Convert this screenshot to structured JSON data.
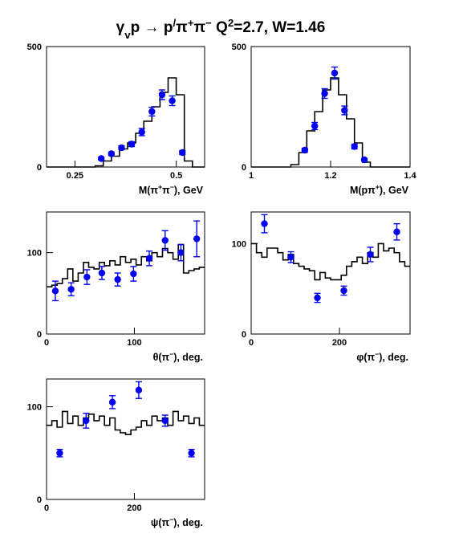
{
  "figure_title": {
    "main": "γvp → p/π+π−   Q2=2.7, W=1.46",
    "parts": [
      {
        "t": "γ",
        "s": "n"
      },
      {
        "t": "v",
        "s": "sub"
      },
      {
        "t": "p → p",
        "s": "n"
      },
      {
        "t": "/",
        "s": "sup"
      },
      {
        "t": "π",
        "s": "n"
      },
      {
        "t": "+",
        "s": "sup"
      },
      {
        "t": "π",
        "s": "n"
      },
      {
        "t": "−",
        "s": "sup"
      },
      {
        "t": "   Q",
        "s": "n"
      },
      {
        "t": "2",
        "s": "sup"
      },
      {
        "t": "=2.7, W=1.46",
        "s": "n"
      }
    ]
  },
  "colors": {
    "data_points": "#0000ee",
    "histogram": "#000000",
    "frame": "#000000"
  },
  "chart_data": [
    {
      "id": "m-pipi",
      "type": "scatter",
      "xlabel": "M(π+π−), GeV",
      "xlabel_parts": [
        {
          "t": "M(π",
          "s": "n"
        },
        {
          "t": "+",
          "s": "sup"
        },
        {
          "t": "π",
          "s": "n"
        },
        {
          "t": "−",
          "s": "sup"
        },
        {
          "t": "), GeV",
          "s": "n"
        }
      ],
      "xlim": [
        0.18,
        0.57
      ],
      "ylim": [
        0,
        500
      ],
      "xticks": [
        {
          "v": 0.25,
          "label": "0.25"
        },
        {
          "v": 0.5,
          "label": "0.5"
        }
      ],
      "yticks": [
        {
          "v": 0,
          "label": "0"
        },
        {
          "v": 500,
          "label": "500"
        }
      ],
      "series": [
        {
          "kind": "histogram",
          "edges": [
            0.18,
            0.3,
            0.32,
            0.34,
            0.36,
            0.38,
            0.4,
            0.42,
            0.44,
            0.46,
            0.48,
            0.5,
            0.52,
            0.54,
            0.57
          ],
          "values": [
            0,
            5,
            25,
            45,
            75,
            100,
            140,
            190,
            250,
            310,
            370,
            300,
            25,
            0
          ]
        },
        {
          "kind": "points",
          "x": [
            0.315,
            0.34,
            0.365,
            0.39,
            0.415,
            0.44,
            0.465,
            0.49,
            0.515
          ],
          "y": [
            35,
            55,
            80,
            95,
            145,
            230,
            300,
            275,
            60
          ],
          "err": [
            6,
            7,
            8,
            10,
            15,
            18,
            20,
            20,
            8
          ]
        }
      ]
    },
    {
      "id": "m-ppi",
      "type": "scatter",
      "xlabel": "M(pπ+), GeV",
      "xlabel_parts": [
        {
          "t": "M(pπ",
          "s": "n"
        },
        {
          "t": "+",
          "s": "sup"
        },
        {
          "t": "), GeV",
          "s": "n"
        }
      ],
      "xlim": [
        1.0,
        1.4
      ],
      "ylim": [
        0,
        500
      ],
      "xticks": [
        {
          "v": 1.0,
          "label": "1"
        },
        {
          "v": 1.2,
          "label": "1.2"
        },
        {
          "v": 1.4,
          "label": "1.4"
        }
      ],
      "yticks": [
        {
          "v": 0,
          "label": "0"
        },
        {
          "v": 500,
          "label": "500"
        }
      ],
      "series": [
        {
          "kind": "histogram",
          "edges": [
            1.0,
            1.1,
            1.12,
            1.14,
            1.16,
            1.18,
            1.2,
            1.22,
            1.24,
            1.26,
            1.28,
            1.3,
            1.4
          ],
          "values": [
            0,
            10,
            60,
            150,
            230,
            320,
            370,
            300,
            200,
            100,
            20,
            0
          ]
        },
        {
          "kind": "points",
          "x": [
            1.135,
            1.16,
            1.185,
            1.21,
            1.235,
            1.26,
            1.285
          ],
          "y": [
            70,
            170,
            305,
            390,
            235,
            85,
            30
          ],
          "err": [
            8,
            15,
            20,
            25,
            18,
            10,
            5
          ]
        }
      ]
    },
    {
      "id": "theta-pi",
      "type": "scatter",
      "xlabel": "θ(π−), deg.",
      "xlabel_parts": [
        {
          "t": "θ(π",
          "s": "n"
        },
        {
          "t": "−",
          "s": "sup"
        },
        {
          "t": "), deg.",
          "s": "n"
        }
      ],
      "xlim": [
        0,
        180
      ],
      "ylim": [
        0,
        150
      ],
      "xticks": [
        {
          "v": 0,
          "label": "0"
        },
        {
          "v": 100,
          "label": "100"
        }
      ],
      "yticks": [
        {
          "v": 0,
          "label": "0"
        },
        {
          "v": 100,
          "label": "100"
        }
      ],
      "series": [
        {
          "kind": "histogram",
          "edges": [
            0,
            6,
            12,
            18,
            24,
            30,
            36,
            42,
            48,
            54,
            60,
            66,
            72,
            78,
            84,
            90,
            96,
            102,
            108,
            114,
            120,
            126,
            132,
            138,
            144,
            150,
            156,
            162,
            168,
            174,
            180
          ],
          "values": [
            58,
            60,
            62,
            68,
            80,
            65,
            75,
            88,
            82,
            80,
            88,
            84,
            90,
            85,
            95,
            88,
            92,
            85,
            95,
            90,
            100,
            95,
            105,
            100,
            92,
            110,
            75,
            78,
            80,
            82
          ]
        },
        {
          "kind": "points",
          "x": [
            10,
            28,
            46,
            63,
            81,
            99,
            117,
            135,
            153,
            171
          ],
          "y": [
            53,
            55,
            70,
            75,
            67,
            74,
            93,
            115,
            100,
            117
          ],
          "err": [
            12,
            8,
            9,
            8,
            8,
            9,
            9,
            12,
            10,
            22
          ]
        }
      ]
    },
    {
      "id": "phi-pi",
      "type": "scatter",
      "xlabel": "φ(π−), deg.",
      "xlabel_parts": [
        {
          "t": "φ(π",
          "s": "n"
        },
        {
          "t": "−",
          "s": "sup"
        },
        {
          "t": "), deg.",
          "s": "n"
        }
      ],
      "xlim": [
        0,
        360
      ],
      "ylim": [
        0,
        135
      ],
      "xticks": [
        {
          "v": 0,
          "label": "0"
        },
        {
          "v": 200,
          "label": "200"
        }
      ],
      "yticks": [
        {
          "v": 0,
          "label": "0"
        },
        {
          "v": 100,
          "label": "100"
        }
      ],
      "series": [
        {
          "kind": "histogram",
          "edges": [
            0,
            12,
            24,
            36,
            48,
            60,
            72,
            84,
            96,
            108,
            120,
            132,
            144,
            156,
            168,
            180,
            192,
            204,
            216,
            228,
            240,
            252,
            264,
            276,
            288,
            300,
            312,
            324,
            336,
            348,
            360
          ],
          "values": [
            100,
            90,
            85,
            95,
            95,
            90,
            82,
            88,
            78,
            75,
            72,
            70,
            60,
            68,
            62,
            60,
            60,
            65,
            75,
            80,
            85,
            78,
            90,
            85,
            100,
            92,
            95,
            90,
            80,
            75
          ]
        },
        {
          "kind": "points",
          "x": [
            30,
            90,
            150,
            210,
            270,
            330
          ],
          "y": [
            122,
            85,
            40,
            48,
            88,
            113
          ],
          "err": [
            10,
            6,
            5,
            5,
            8,
            9
          ]
        }
      ]
    },
    {
      "id": "psi-pi",
      "type": "scatter",
      "xlabel": "ψ(π−), deg.",
      "xlabel_parts": [
        {
          "t": "ψ(π",
          "s": "n"
        },
        {
          "t": "−",
          "s": "sup"
        },
        {
          "t": "), deg.",
          "s": "n"
        }
      ],
      "xlim": [
        0,
        360
      ],
      "ylim": [
        0,
        130
      ],
      "xticks": [
        {
          "v": 0,
          "label": "0"
        },
        {
          "v": 200,
          "label": "200"
        }
      ],
      "yticks": [
        {
          "v": 0,
          "label": "0"
        },
        {
          "v": 100,
          "label": "100"
        }
      ],
      "series": [
        {
          "kind": "histogram",
          "edges": [
            0,
            12,
            24,
            36,
            48,
            60,
            72,
            84,
            96,
            108,
            120,
            132,
            144,
            156,
            168,
            180,
            192,
            204,
            216,
            228,
            240,
            252,
            264,
            276,
            288,
            300,
            312,
            324,
            336,
            348,
            360
          ],
          "values": [
            80,
            85,
            78,
            95,
            82,
            90,
            80,
            88,
            92,
            85,
            90,
            80,
            88,
            75,
            72,
            70,
            75,
            78,
            85,
            80,
            90,
            85,
            88,
            80,
            95,
            85,
            90,
            82,
            88,
            80
          ]
        },
        {
          "kind": "points",
          "x": [
            30,
            90,
            150,
            210,
            270,
            330
          ],
          "y": [
            50,
            85,
            105,
            118,
            85,
            50
          ],
          "err": [
            4,
            8,
            7,
            9,
            6,
            4
          ]
        }
      ]
    }
  ]
}
